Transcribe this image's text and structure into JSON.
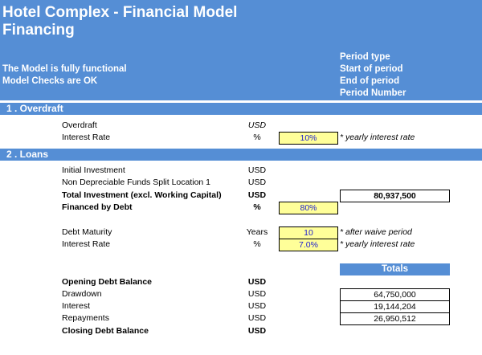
{
  "header": {
    "title_line1": "Hotel Complex - Financial Model",
    "title_line2": "Financing",
    "status_line1": "The Model is fully functional",
    "status_line2": "Model Checks are OK",
    "period_labels": [
      "Period type",
      "Start of period",
      "End of period",
      "Period Number"
    ]
  },
  "overdraft": {
    "heading": "1 . Overdraft",
    "rows": [
      {
        "label": "Overdraft",
        "unit": "USD"
      },
      {
        "label": "Interest Rate",
        "unit": "%",
        "input": "10%",
        "note": "* yearly interest rate"
      }
    ]
  },
  "loans": {
    "heading": "2 . Loans",
    "initial_investment": {
      "label": "Initial Investment",
      "unit": "USD"
    },
    "non_depreciable": {
      "label": "Non Depreciable Funds Split Location 1",
      "unit": "USD"
    },
    "total_investment": {
      "label": "Total Investment (excl. Working Capital)",
      "unit": "USD",
      "value": "80,937,500"
    },
    "financed_by_debt": {
      "label": "Financed by Debt",
      "unit": "%",
      "input": "80%"
    },
    "debt_maturity": {
      "label": "Debt Maturity",
      "unit": "Years",
      "input": "10",
      "note": "* after waive period"
    },
    "interest_rate": {
      "label": "Interest Rate",
      "unit": "%",
      "input": "7.0%",
      "note": "* yearly interest rate"
    },
    "totals_header": "Totals",
    "opening_balance": {
      "label": "Opening Debt Balance",
      "unit": "USD"
    },
    "drawdown": {
      "label": "Drawdown",
      "unit": "USD",
      "value": "64,750,000"
    },
    "interest": {
      "label": "Interest",
      "unit": "USD",
      "value": "19,144,204"
    },
    "repayments": {
      "label": "Repayments",
      "unit": "USD",
      "value": "26,950,512"
    },
    "closing_balance": {
      "label": "Closing Debt Balance",
      "unit": "USD"
    }
  },
  "colors": {
    "header_blue": "#558ed5",
    "input_yellow": "#ffff99",
    "input_text_blue": "#1f1fcf"
  }
}
